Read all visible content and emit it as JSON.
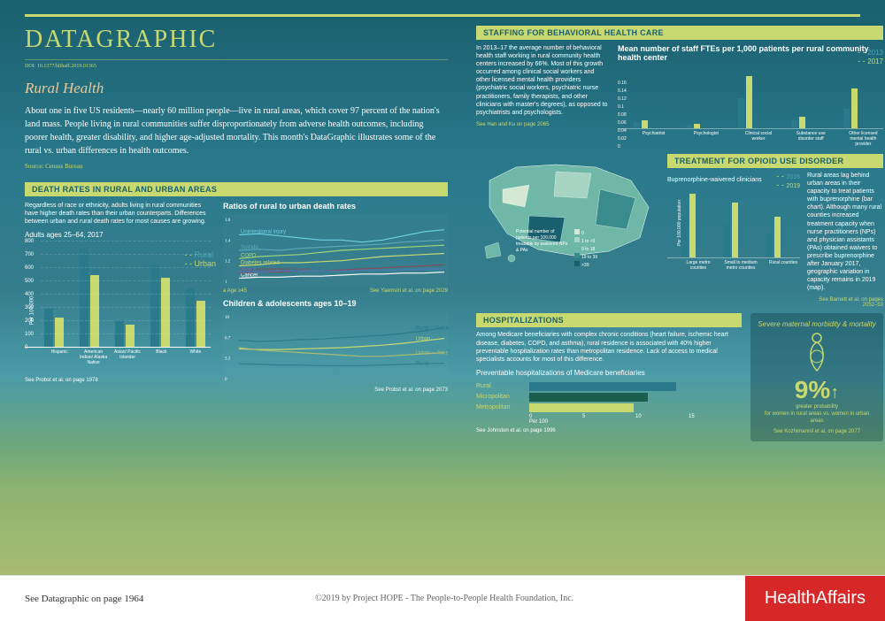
{
  "header": {
    "title": "DATAGRAPHIC",
    "doi": "DOI: 10.1377/hlthaff.2019.01365",
    "subtitle": "Rural Health",
    "intro": "About one in five US residents—nearly 60 million people—live in rural areas, which cover 97 percent of the nation's land mass. People living in rural communities suffer disproportionately from adverse health outcomes, including poorer health, greater disability, and higher age-adjusted mortality. This month's DataGraphic illustrates some of the rural vs. urban differences in health outcomes.",
    "source": "Source: Census Bureau"
  },
  "death": {
    "section": "DEATH RATES IN RURAL AND URBAN AREAS",
    "blurb": "Regardless of race or ethnicity, adults living in rural communities have higher death rates than their urban counterparts. Differences between urban and rural death rates for most causes are growing.",
    "adults_title": "Adults ages 25–64, 2017",
    "legend_rural": "Rural",
    "legend_urban": "Urban",
    "yticks": [
      0,
      100,
      200,
      300,
      400,
      500,
      600,
      700,
      800
    ],
    "ylabel": "Per 100,000",
    "groups": [
      {
        "cat": "Hispanic",
        "rural": 290,
        "urban": 220
      },
      {
        "cat": "American Indian/ Alaska Native",
        "rural": 740,
        "urban": 540
      },
      {
        "cat": "Asian/ Pacific Islander",
        "rural": 200,
        "urban": 170
      },
      {
        "cat": "Black",
        "rural": 620,
        "urban": 520
      },
      {
        "cat": "White",
        "rural": 440,
        "urban": 350
      }
    ],
    "ratio_title": "Ratios of rural to urban death rates",
    "ratio_ylim": [
      1.0,
      1.6
    ],
    "ratio_years": [
      2007,
      2017
    ],
    "ratio_lines": [
      {
        "name": "Unintentional injury",
        "color": "#6fd0e0",
        "pts": [
          1.45,
          1.46,
          1.44,
          1.42,
          1.4,
          1.4,
          1.38,
          1.4,
          1.44,
          1.48,
          1.5
        ]
      },
      {
        "name": "Suicide",
        "color": "#5aa8b8",
        "pts": [
          1.3,
          1.31,
          1.3,
          1.32,
          1.33,
          1.34,
          1.35,
          1.36,
          1.38,
          1.39,
          1.4
        ]
      },
      {
        "name": "COPD",
        "color": "#9fd67a",
        "pts": [
          1.22,
          1.24,
          1.25,
          1.26,
          1.28,
          1.3,
          1.31,
          1.32,
          1.33,
          1.34,
          1.35
        ],
        "sup": "a"
      },
      {
        "name": "Diabetes related",
        "color": "#c8d96f",
        "pts": [
          1.15,
          1.16,
          1.18,
          1.18,
          1.19,
          1.2,
          1.22,
          1.24,
          1.25,
          1.26,
          1.27
        ]
      },
      {
        "name": "Cancer",
        "color": "#ffffff",
        "pts": [
          1.03,
          1.04,
          1.04,
          1.05,
          1.05,
          1.06,
          1.07,
          1.07,
          1.08,
          1.08,
          1.09
        ]
      },
      {
        "name": "Cardiovascular heart disease",
        "color": "#8a4a5a",
        "pts": [
          1.08,
          1.09,
          1.09,
          1.1,
          1.1,
          1.11,
          1.12,
          1.13,
          1.14,
          1.15,
          1.16
        ]
      },
      {
        "name": "Stroke",
        "color": "#4a7ab8",
        "pts": [
          1.09,
          1.09,
          1.1,
          1.1,
          1.1,
          1.1,
          1.11,
          1.11,
          1.11,
          1.12,
          1.12
        ]
      }
    ],
    "ratio_note": "a Age ≥45",
    "ratio_ref": "See Yaemsiri et al. on page 2029",
    "child_title": "Children & adolescents ages 10–19",
    "child_ylim": [
      0,
      10
    ],
    "child_years": [
      1999,
      2017
    ],
    "child_lines": [
      {
        "name": "Suicide",
        "tag": "Rural",
        "color": "#2b7a8c",
        "pts": [
          6.2,
          6.0,
          6.1,
          6.3,
          6.4,
          6.6,
          6.8,
          7.0,
          7.3,
          7.7,
          8.2
        ]
      },
      {
        "name": "Suicide",
        "tag": "Urban",
        "color": "#c8d96f",
        "pts": [
          4.8,
          4.7,
          4.7,
          4.8,
          4.9,
          5.0,
          5.2,
          5.4,
          5.7,
          6.1,
          6.5
        ]
      },
      {
        "name": "Assault",
        "tag": "Urban",
        "color": "#a8bc72",
        "pts": [
          5.0,
          4.6,
          4.4,
          4.2,
          4.0,
          3.8,
          3.6,
          3.6,
          3.8,
          4.0,
          4.2
        ]
      },
      {
        "name": "Assault",
        "tag": "Rural",
        "color": "#357d8c",
        "pts": [
          2.4,
          2.3,
          2.2,
          2.2,
          2.1,
          2.1,
          2.1,
          2.2,
          2.3,
          2.4,
          2.5
        ]
      }
    ],
    "child_ref": "See Probst et al. on page 1978",
    "child_ref2": "See Probst et al. on page 2073"
  },
  "staffing": {
    "section": "STAFFING FOR BEHAVIORAL HEALTH CARE",
    "blurb": "In 2013–17 the average number of behavioral health staff working in rural community health centers increased by 66%. Most of this growth occurred among clinical social workers and other licensed mental health providers (psychiatric social workers, psychiatric nurse practitioners, family therapists, and other clinicians with master's degrees), as opposed to psychiatrists and psychologists.",
    "ref": "See Han and Ku on page 2065",
    "chart_title": "Mean number of staff FTEs per 1,000 patients per rural community health center",
    "leg2013": "2013",
    "leg2017": "2017",
    "yticks": [
      0,
      0.02,
      0.04,
      0.06,
      0.08,
      0.1,
      0.12,
      0.14,
      0.16
    ],
    "cats": [
      {
        "n": "Psychiatrist",
        "a": 0.016,
        "b": 0.02
      },
      {
        "n": "Psychologist",
        "a": 0.01,
        "b": 0.012
      },
      {
        "n": "Clinical social worker",
        "a": 0.075,
        "b": 0.132
      },
      {
        "n": "Substance use disorder staff",
        "a": 0.02,
        "b": 0.028
      },
      {
        "n": "Other licensed mental health provider",
        "a": 0.05,
        "b": 0.1
      }
    ]
  },
  "map": {
    "title": "Buprenorphine-waivered clinicians",
    "legend_title": "Potential number of patients per 100,000 treatable by waivered NPs & PAs",
    "bins": [
      "0",
      "1 to <9",
      "9 to 18",
      "19 to 39",
      ">39"
    ],
    "colors": [
      "#d4e8d4",
      "#a8d4c4",
      "#6fb8a8",
      "#3a8c8c",
      "#1a5f6e"
    ]
  },
  "opioid": {
    "section": "TREATMENT FOR OPIOID USE DISORDER",
    "blurb": "Rural areas lag behind urban areas in their capacity to treat patients with buprenorphine (bar chart). Although many rural counties increased treatment capacity when nurse practitioners (NPs) and physician assistants (PAs) obtained waivers to prescribe buprenorphine after January 2017, geographic variation in capacity remains in 2019 (map).",
    "leg2016": "2016",
    "leg2019": "2019",
    "ylabel": "Per 100,000 population",
    "cats": [
      {
        "n": "Large metro counties",
        "a": 14,
        "b": 22
      },
      {
        "n": "Small to medium metro counties",
        "a": 12,
        "b": 19
      },
      {
        "n": "Rural counties",
        "a": 8,
        "b": 14
      }
    ],
    "ref": "See Barnett et al. on pages 2052–53"
  },
  "hosp": {
    "section": "HOSPITALIZATIONS",
    "blurb": "Among Medicare beneficiaries with complex chronic conditions (heart failure, ischemic heart disease, diabetes, COPD, and asthma), rural residence is associated with 40% higher preventable hospitalization rates than metropolitan residence. Lack of access to medical specialists accounts for most of this difference.",
    "chart_title": "Preventable hospitalizations of Medicare beneficiaries",
    "rows": [
      {
        "n": "Rural",
        "v": 13.8,
        "c": "#2b7a8c"
      },
      {
        "n": "Micropolitan",
        "v": 11.2,
        "c": "#1a5f4e"
      },
      {
        "n": "Metropolitan",
        "v": 9.8,
        "c": "#c8d96f"
      }
    ],
    "xlabel": "Per 100",
    "xticks": [
      0,
      5,
      10,
      15
    ],
    "ref": "See Johnston et al. on page 1996"
  },
  "maternal": {
    "title": "Severe maternal morbidity & mortality",
    "pct": "9%",
    "arrow": "↑",
    "sub1": "greater probability",
    "sub2": "for women in rural areas vs. women in urban areas",
    "ref": "See Kozhimannil et al. on page 2077"
  },
  "footer": {
    "left": "See Datagraphic on page 1964",
    "center": "©2019 by Project HOPE - The People-to-People Health Foundation, Inc.",
    "logo": "HealthAffairs"
  }
}
